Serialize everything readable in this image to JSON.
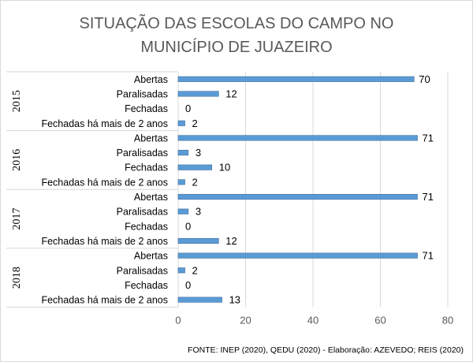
{
  "chart_data": {
    "type": "bar",
    "orientation": "horizontal",
    "title_lines": [
      "SITUAÇÃO DAS ESCOLAS DO CAMPO NO",
      "MUNICÍPIO DE JUAZEIRO"
    ],
    "groups": [
      {
        "year": "2015",
        "items": [
          {
            "label": "Abertas",
            "value": 70
          },
          {
            "label": "Paralisadas",
            "value": 12
          },
          {
            "label": "Fechadas",
            "value": 0
          },
          {
            "label": "Fechadas há mais de 2 anos",
            "value": 2
          }
        ]
      },
      {
        "year": "2016",
        "items": [
          {
            "label": "Abertas",
            "value": 71
          },
          {
            "label": "Paralisadas",
            "value": 3
          },
          {
            "label": "Fechadas",
            "value": 10
          },
          {
            "label": "Fechadas há mais de 2 anos",
            "value": 2
          }
        ]
      },
      {
        "year": "2017",
        "items": [
          {
            "label": "Abertas",
            "value": 71
          },
          {
            "label": "Paralisadas",
            "value": 3
          },
          {
            "label": "Fechadas",
            "value": 0
          },
          {
            "label": "Fechadas há mais de 2 anos",
            "value": 12
          }
        ]
      },
      {
        "year": "2018",
        "items": [
          {
            "label": "Abertas",
            "value": 71
          },
          {
            "label": "Paralisadas",
            "value": 2
          },
          {
            "label": "Fechadas",
            "value": 0
          },
          {
            "label": "Fechadas há mais de 2 anos",
            "value": 13
          }
        ]
      }
    ],
    "xlim": [
      0,
      80
    ],
    "xticks": [
      "0",
      "20",
      "40",
      "60",
      "80"
    ],
    "grid": true,
    "bar_color": "#5b9bd5",
    "source": "FONTE: INEP (2020),  QEDU (2020)  - Elaboração: AZEVEDO; REIS (2020)"
  }
}
